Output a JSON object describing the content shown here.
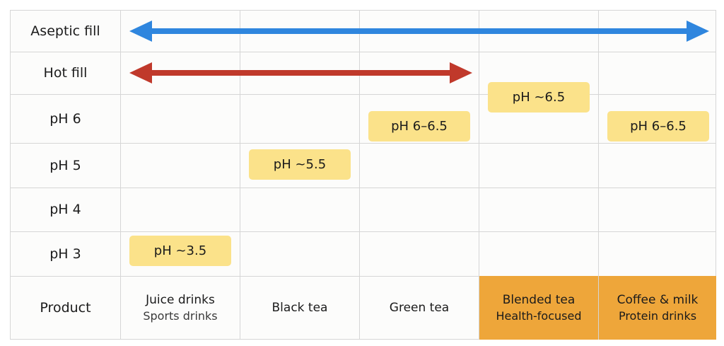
{
  "rows": {
    "aseptic": "Aseptic fill",
    "hot": "Hot fill",
    "ph6": "pH 6",
    "ph5": "pH 5",
    "ph4": "pH 4",
    "ph3": "pH 3",
    "product": "Product"
  },
  "products": [
    {
      "line1": "Juice drinks",
      "line2": "Sports drinks",
      "highlighted": false
    },
    {
      "line1": "Black tea",
      "line2": "",
      "highlighted": false
    },
    {
      "line1": "Green tea",
      "line2": "",
      "highlighted": false
    },
    {
      "line1": "Blended tea",
      "line2": "Health-focused",
      "highlighted": true
    },
    {
      "line1": "Coffee & milk",
      "line2": "Protein drinks",
      "highlighted": true
    }
  ],
  "badges": {
    "juice": "pH ~3.5",
    "black_tea": "pH ~5.5",
    "green_tea": "pH 6–6.5",
    "blended_tea": "pH ~6.5",
    "coffee_milk": "pH 6–6.5"
  },
  "arrows": {
    "aseptic": {
      "color": "#2f86de",
      "spans": "all products"
    },
    "hot": {
      "color": "#c0392b",
      "spans": "Juice drinks to Green tea"
    }
  },
  "colors": {
    "highlight": "#eea63a",
    "badge": "#fbe28a"
  }
}
